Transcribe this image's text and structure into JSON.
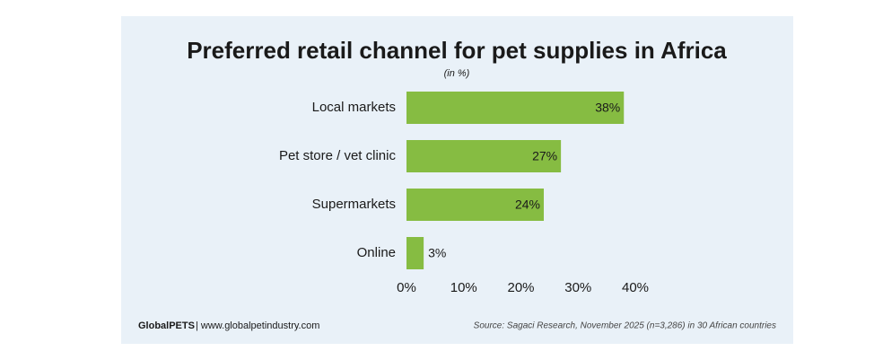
{
  "chart_data": {
    "type": "bar",
    "orientation": "horizontal",
    "title": "Preferred retail channel for pet supplies in Africa",
    "subtitle": "(in %)",
    "categories": [
      "Local markets",
      "Pet store / vet clinic",
      "Supermarkets",
      "Online"
    ],
    "values": [
      38,
      27,
      24,
      3
    ],
    "value_labels": [
      "38%",
      "27%",
      "24%",
      "3%"
    ],
    "color": "#86bc42",
    "xlim": [
      0,
      40
    ],
    "xticks": [
      {
        "value": 0,
        "label": "0%"
      },
      {
        "value": 10,
        "label": "10%"
      },
      {
        "value": 20,
        "label": "20%"
      },
      {
        "value": 30,
        "label": "30%"
      },
      {
        "value": 40,
        "label": "40%"
      }
    ],
    "grid": false,
    "credit_brand": "GlobalPETS",
    "credit_url": "| www.globalpetindustry.com",
    "source": "Source: Sagaci Research, November 2025 (n=3,286) in 30 African countries"
  }
}
